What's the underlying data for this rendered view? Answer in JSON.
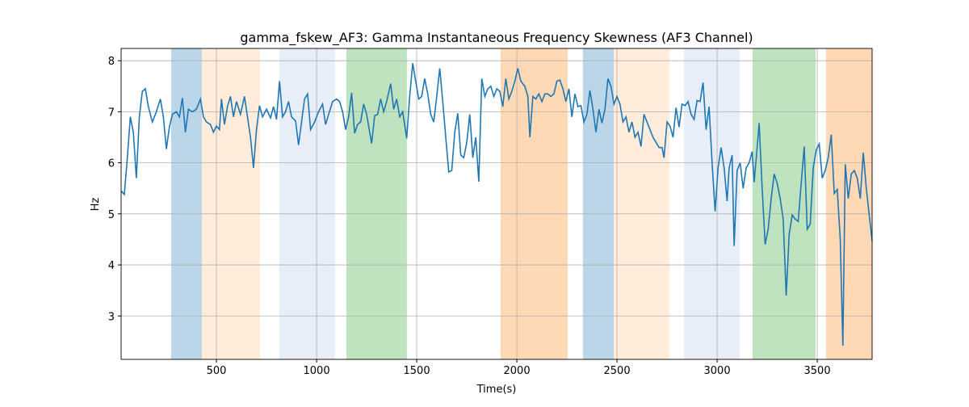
{
  "chart_data": {
    "type": "line",
    "title": "gamma_fskew_AF3: Gamma Instantaneous Frequency Skewness (AF3 Channel)",
    "x_label": "Time(s)",
    "y_label": "Hz",
    "xlim": [
      24,
      3774
    ],
    "ylim": [
      2.15,
      8.24
    ],
    "xticks": [
      500,
      1000,
      1500,
      2000,
      2500,
      3000,
      3500
    ],
    "yticks": [
      3,
      4,
      5,
      6,
      7,
      8
    ],
    "grid": true,
    "spans": [
      {
        "x0": 274,
        "x1": 427,
        "color": "#1f77b44d"
      },
      {
        "x0": 427,
        "x1": 717,
        "color": "#ff7f0e26"
      },
      {
        "x0": 814,
        "x1": 1092,
        "color": "#aec7e84d"
      },
      {
        "x0": 1149,
        "x1": 1451,
        "color": "#2ca02c4d"
      },
      {
        "x0": 1919,
        "x1": 2254,
        "color": "#ff7f0e4d"
      },
      {
        "x0": 2330,
        "x1": 2484,
        "color": "#1f77b44d"
      },
      {
        "x0": 2484,
        "x1": 2762,
        "color": "#ff7f0e26"
      },
      {
        "x0": 2835,
        "x1": 3113,
        "color": "#aec7e84d"
      },
      {
        "x0": 3177,
        "x1": 3492,
        "color": "#2ca02c4d"
      },
      {
        "x0": 3544,
        "x1": 3774,
        "color": "#ff7f0e4d"
      }
    ],
    "series": [
      {
        "color": "#1f77b4",
        "x": [
          24,
          40,
          55,
          70,
          85,
          100,
          115,
          130,
          145,
          160,
          180,
          200,
          220,
          235,
          250,
          265,
          280,
          300,
          315,
          330,
          345,
          360,
          380,
          400,
          420,
          435,
          450,
          470,
          485,
          500,
          515,
          525,
          540,
          555,
          570,
          585,
          600,
          620,
          640,
          655,
          670,
          685,
          700,
          715,
          730,
          750,
          770,
          785,
          800,
          815,
          830,
          845,
          860,
          875,
          895,
          910,
          925,
          940,
          955,
          970,
          990,
          1010,
          1030,
          1045,
          1060,
          1080,
          1100,
          1115,
          1130,
          1145,
          1160,
          1175,
          1190,
          1205,
          1220,
          1235,
          1250,
          1265,
          1275,
          1290,
          1305,
          1320,
          1335,
          1350,
          1370,
          1385,
          1400,
          1415,
          1430,
          1450,
          1465,
          1480,
          1495,
          1510,
          1525,
          1540,
          1555,
          1570,
          1585,
          1600,
          1615,
          1630,
          1645,
          1660,
          1675,
          1690,
          1705,
          1720,
          1735,
          1750,
          1765,
          1780,
          1795,
          1810,
          1825,
          1840,
          1855,
          1870,
          1885,
          1900,
          1915,
          1930,
          1945,
          1960,
          1975,
          1990,
          2005,
          2020,
          2040,
          2055,
          2065,
          2080,
          2095,
          2110,
          2125,
          2140,
          2155,
          2170,
          2185,
          2200,
          2215,
          2230,
          2245,
          2260,
          2275,
          2290,
          2305,
          2320,
          2335,
          2350,
          2365,
          2380,
          2395,
          2410,
          2425,
          2440,
          2455,
          2470,
          2485,
          2500,
          2515,
          2530,
          2545,
          2560,
          2575,
          2590,
          2605,
          2620,
          2635,
          2650,
          2665,
          2680,
          2695,
          2710,
          2725,
          2735,
          2750,
          2765,
          2780,
          2795,
          2810,
          2825,
          2840,
          2855,
          2870,
          2885,
          2900,
          2915,
          2930,
          2945,
          2960,
          2975,
          2990,
          3005,
          3020,
          3035,
          3050,
          3060,
          3075,
          3085,
          3100,
          3115,
          3130,
          3145,
          3160,
          3175,
          3185,
          3200,
          3210,
          3225,
          3240,
          3255,
          3270,
          3285,
          3300,
          3315,
          3330,
          3345,
          3360,
          3375,
          3390,
          3405,
          3420,
          3435,
          3450,
          3465,
          3480,
          3495,
          3510,
          3525,
          3540,
          3555,
          3570,
          3585,
          3600,
          3615,
          3628,
          3640,
          3655,
          3670,
          3685,
          3700,
          3715,
          3730,
          3745,
          3774
        ],
        "values": [
          5.45,
          5.38,
          6.1,
          6.9,
          6.6,
          5.7,
          6.9,
          7.4,
          7.45,
          7.1,
          6.8,
          7.0,
          7.25,
          6.9,
          6.27,
          6.7,
          6.95,
          7.0,
          6.9,
          7.27,
          6.6,
          7.05,
          7.0,
          7.05,
          7.25,
          6.9,
          6.8,
          6.75,
          6.6,
          6.72,
          6.65,
          7.25,
          6.75,
          7.1,
          7.3,
          6.9,
          7.2,
          6.95,
          7.3,
          6.9,
          6.5,
          5.9,
          6.65,
          7.12,
          6.9,
          7.05,
          6.88,
          7.1,
          6.85,
          7.6,
          6.9,
          7.0,
          7.2,
          6.9,
          6.82,
          6.35,
          6.8,
          7.25,
          7.35,
          6.65,
          6.8,
          7.0,
          7.15,
          6.75,
          6.95,
          7.2,
          7.25,
          7.2,
          7.0,
          6.65,
          6.9,
          7.37,
          6.58,
          6.75,
          6.8,
          7.15,
          6.95,
          6.6,
          6.38,
          6.92,
          6.95,
          7.25,
          7.0,
          7.2,
          7.55,
          7.05,
          7.25,
          6.9,
          7.0,
          6.48,
          7.3,
          7.95,
          7.6,
          7.25,
          7.3,
          7.65,
          7.35,
          6.95,
          6.8,
          7.3,
          7.85,
          7.2,
          6.5,
          5.82,
          5.85,
          6.6,
          6.97,
          6.15,
          6.1,
          6.4,
          6.95,
          6.1,
          6.5,
          5.63,
          7.65,
          7.3,
          7.45,
          7.5,
          7.3,
          7.45,
          7.4,
          7.1,
          7.65,
          7.25,
          7.4,
          7.6,
          7.85,
          7.6,
          7.5,
          7.3,
          6.5,
          7.3,
          7.25,
          7.35,
          7.2,
          7.35,
          7.35,
          7.3,
          7.35,
          7.6,
          7.62,
          7.45,
          7.2,
          7.45,
          6.9,
          7.35,
          7.1,
          7.12,
          6.8,
          6.95,
          7.42,
          7.05,
          6.6,
          7.05,
          6.78,
          7.05,
          7.65,
          7.5,
          7.15,
          7.3,
          7.15,
          6.8,
          6.9,
          6.6,
          6.8,
          6.5,
          6.6,
          6.32,
          6.95,
          6.8,
          6.65,
          6.5,
          6.4,
          6.3,
          6.3,
          6.1,
          6.8,
          6.72,
          6.5,
          7.08,
          6.7,
          7.15,
          7.12,
          7.2,
          6.95,
          6.85,
          7.22,
          7.2,
          7.57,
          6.65,
          7.1,
          6.0,
          5.05,
          5.9,
          6.3,
          5.9,
          5.25,
          5.9,
          6.15,
          4.37,
          5.85,
          6.0,
          5.5,
          5.9,
          6.0,
          6.22,
          5.62,
          6.3,
          6.78,
          5.5,
          4.4,
          4.7,
          5.3,
          5.78,
          5.6,
          5.3,
          4.9,
          3.4,
          4.6,
          4.98,
          4.9,
          4.85,
          5.6,
          6.32,
          4.7,
          4.8,
          5.9,
          6.25,
          6.37,
          5.7,
          5.85,
          6.1,
          6.55,
          5.4,
          5.48,
          4.5,
          2.42,
          5.97,
          5.3,
          5.78,
          5.85,
          5.7,
          5.3,
          6.2,
          5.5,
          4.47
        ]
      }
    ]
  }
}
